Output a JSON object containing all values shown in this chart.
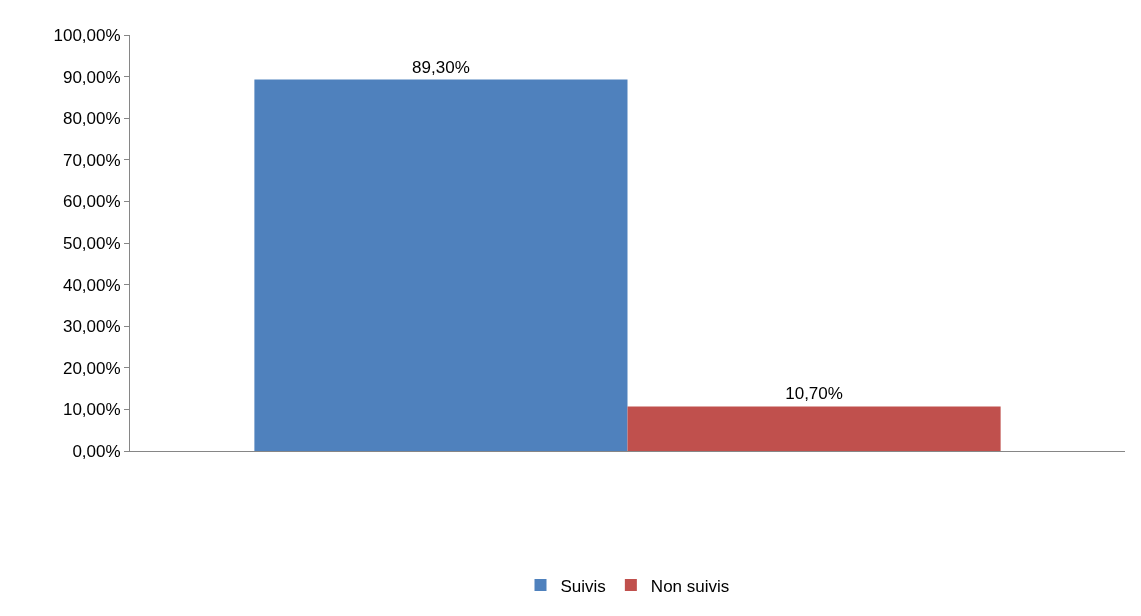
{
  "chart_data": {
    "type": "bar",
    "categories": [
      null
    ],
    "series": [
      {
        "name": "Suivis",
        "color": "#4f81bd",
        "values": [
          89.3
        ],
        "value_labels": [
          "89,30%"
        ]
      },
      {
        "name": "Non suivis",
        "color": "#c0504d",
        "values": [
          10.7
        ],
        "value_labels": [
          "10,70%"
        ]
      }
    ],
    "ylim": [
      0,
      100
    ],
    "yticks": [
      {
        "value": 0,
        "label": "0,00%"
      },
      {
        "value": 10,
        "label": "10,00%"
      },
      {
        "value": 20,
        "label": "20,00%"
      },
      {
        "value": 30,
        "label": "30,00%"
      },
      {
        "value": 40,
        "label": "40,00%"
      },
      {
        "value": 50,
        "label": "50,00%"
      },
      {
        "value": 60,
        "label": "60,00%"
      },
      {
        "value": 70,
        "label": "70,00%"
      },
      {
        "value": 80,
        "label": "80,00%"
      },
      {
        "value": 90,
        "label": "90,00%"
      },
      {
        "value": 100,
        "label": "100,00%"
      }
    ],
    "legend": "bottom"
  }
}
